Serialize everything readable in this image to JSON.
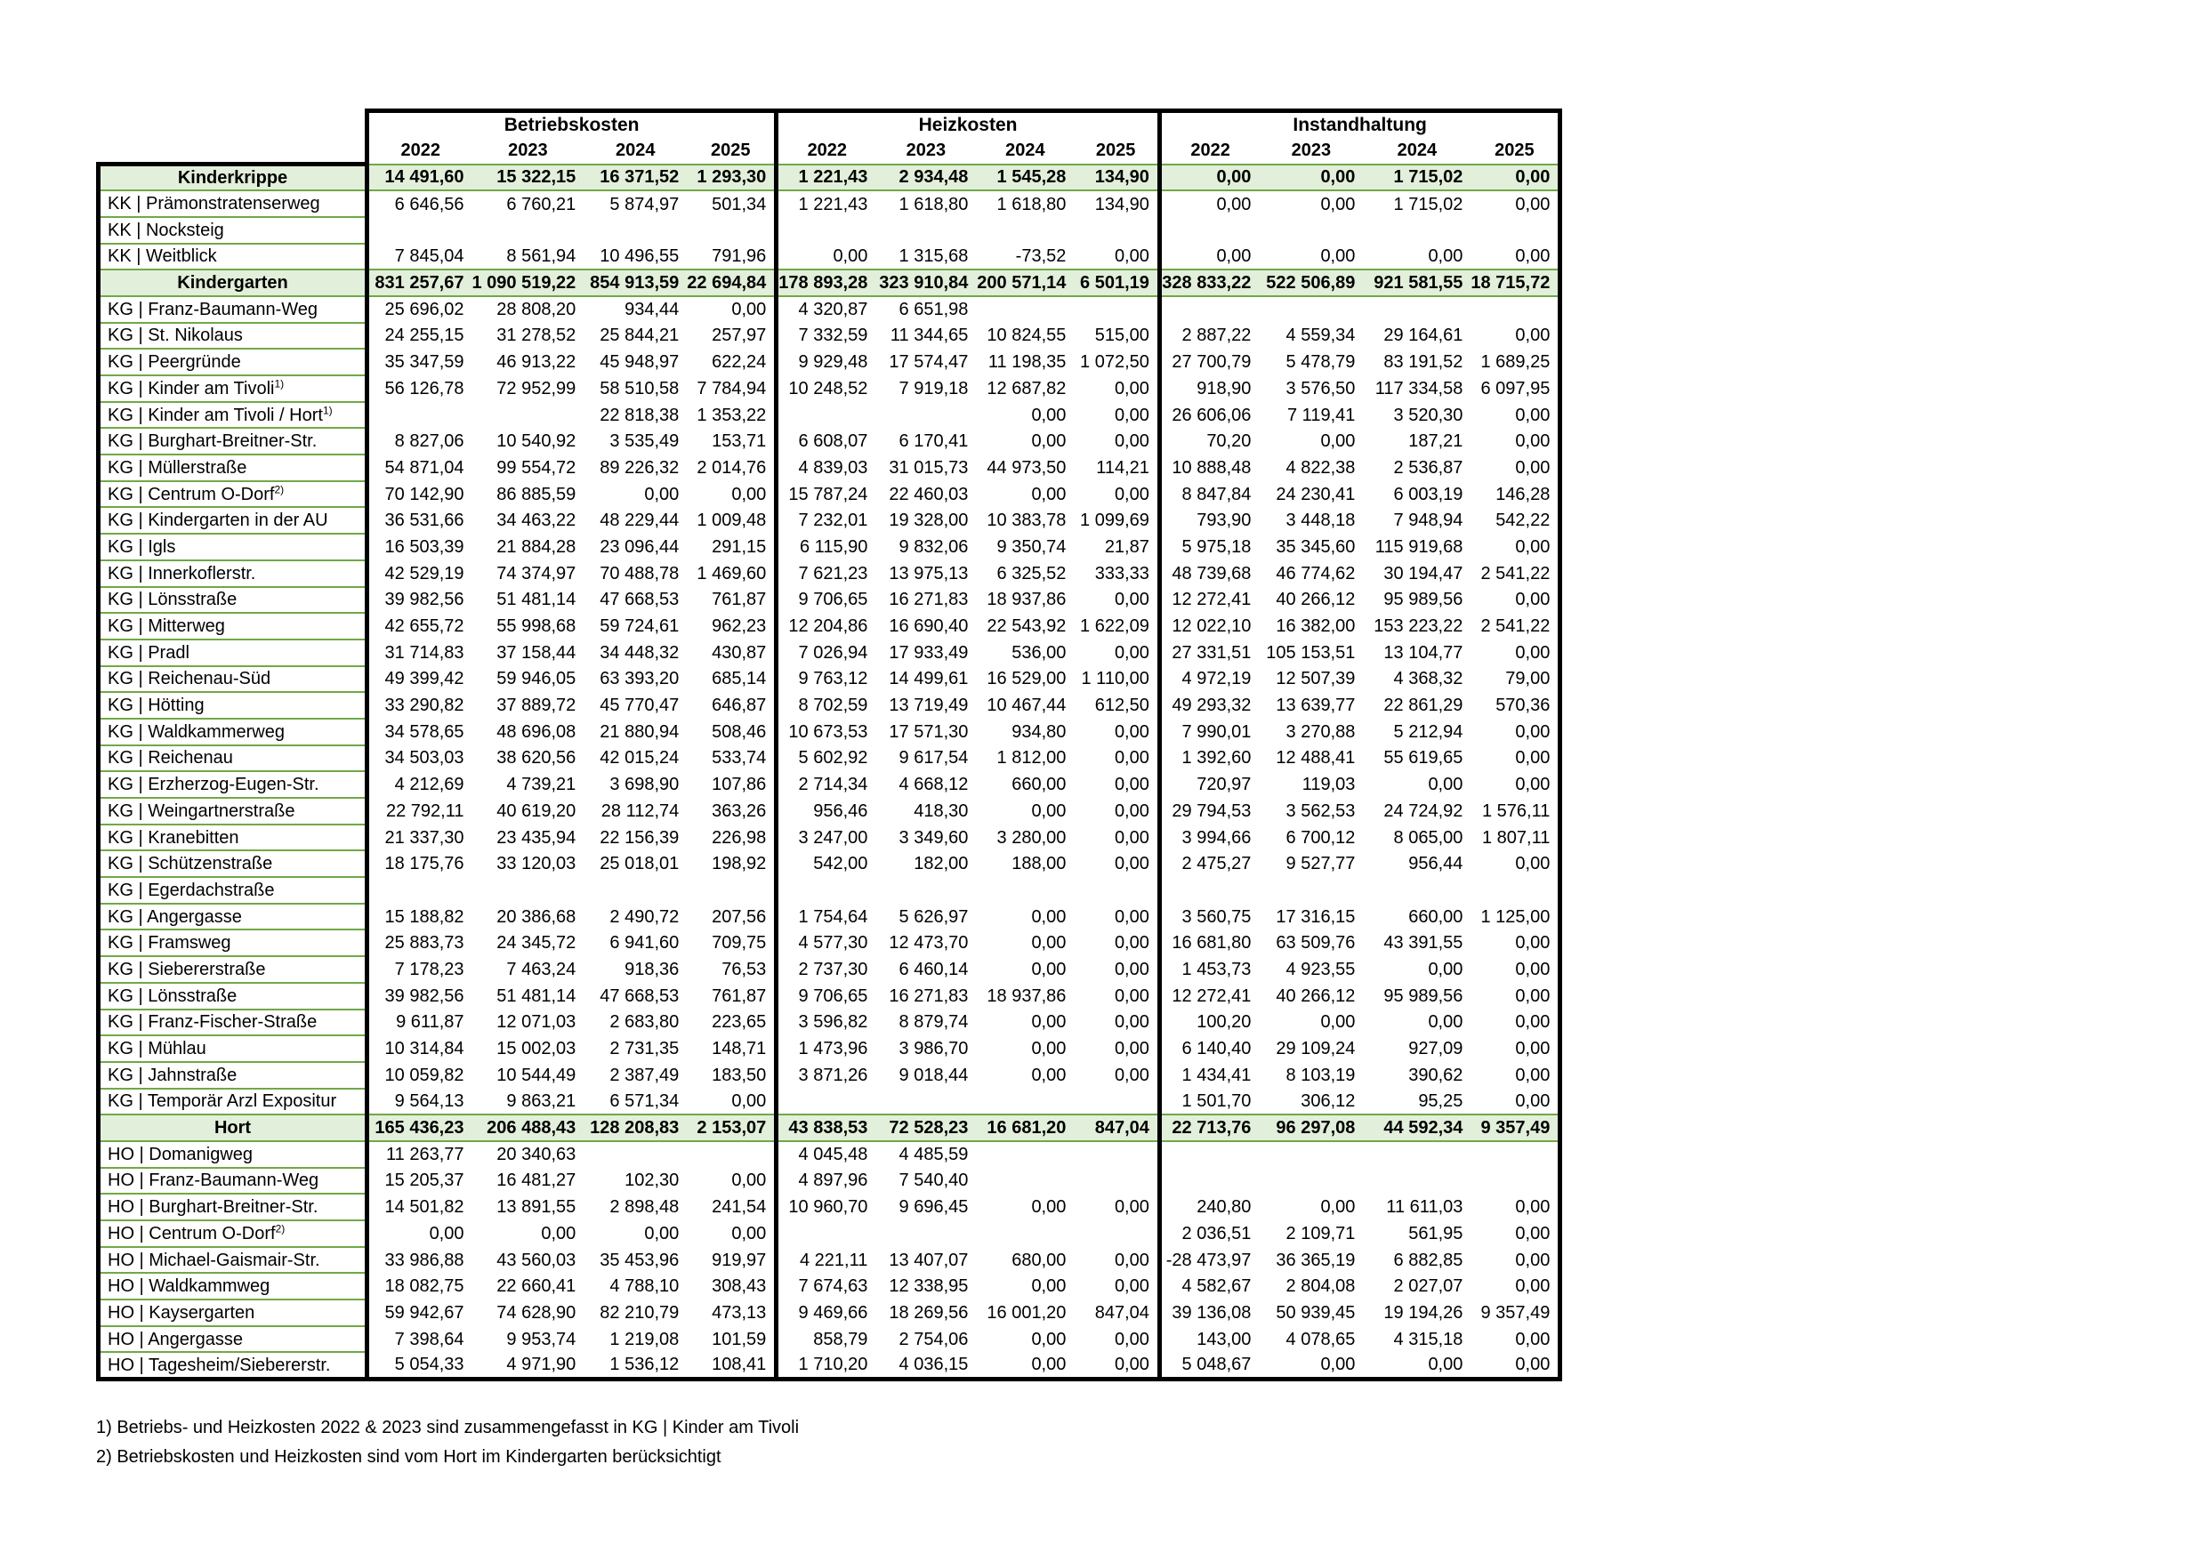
{
  "table": {
    "groups": [
      "Betriebskosten",
      "Heizkosten",
      "Instandhaltung"
    ],
    "years": [
      "2022",
      "2023",
      "2024",
      "2025"
    ],
    "rows": [
      {
        "label": "Kinderkrippe",
        "type": "section",
        "bk": [
          "14 491,60",
          "15 322,15",
          "16 371,52",
          "1 293,30"
        ],
        "hk": [
          "1 221,43",
          "2 934,48",
          "1 545,28",
          "134,90"
        ],
        "ih": [
          "0,00",
          "0,00",
          "1 715,02",
          "0,00"
        ]
      },
      {
        "label": "KK | Prämonstratenserweg",
        "type": "item",
        "bk": [
          "6 646,56",
          "6 760,21",
          "5 874,97",
          "501,34"
        ],
        "hk": [
          "1 221,43",
          "1 618,80",
          "1 618,80",
          "134,90"
        ],
        "ih": [
          "0,00",
          "0,00",
          "1 715,02",
          "0,00"
        ]
      },
      {
        "label": "KK | Nocksteig",
        "type": "item",
        "bk": [
          "",
          "",
          "",
          ""
        ],
        "hk": [
          "",
          "",
          "",
          ""
        ],
        "ih": [
          "",
          "",
          "",
          ""
        ]
      },
      {
        "label": "KK | Weitblick",
        "type": "item",
        "bk": [
          "7 845,04",
          "8 561,94",
          "10 496,55",
          "791,96"
        ],
        "hk": [
          "0,00",
          "1 315,68",
          "-73,52",
          "0,00"
        ],
        "ih": [
          "0,00",
          "0,00",
          "0,00",
          "0,00"
        ]
      },
      {
        "label": "Kindergarten",
        "type": "section",
        "bk": [
          "831 257,67",
          "1 090 519,22",
          "854 913,59",
          "22 694,84"
        ],
        "hk": [
          "178 893,28",
          "323 910,84",
          "200 571,14",
          "6 501,19"
        ],
        "ih": [
          "328 833,22",
          "522 506,89",
          "921 581,55",
          "18 715,72"
        ]
      },
      {
        "label": "KG | Franz-Baumann-Weg",
        "type": "item",
        "bk": [
          "25 696,02",
          "28 808,20",
          "934,44",
          "0,00"
        ],
        "hk": [
          "4 320,87",
          "6 651,98",
          "",
          ""
        ],
        "ih": [
          "",
          "",
          "",
          ""
        ]
      },
      {
        "label": "KG | St. Nikolaus",
        "type": "item",
        "bk": [
          "24 255,15",
          "31 278,52",
          "25 844,21",
          "257,97"
        ],
        "hk": [
          "7 332,59",
          "11 344,65",
          "10 824,55",
          "515,00"
        ],
        "ih": [
          "2 887,22",
          "4 559,34",
          "29 164,61",
          "0,00"
        ]
      },
      {
        "label": "KG | Peergründe",
        "type": "item",
        "bk": [
          "35 347,59",
          "46 913,22",
          "45 948,97",
          "622,24"
        ],
        "hk": [
          "9 929,48",
          "17 574,47",
          "11 198,35",
          "1 072,50"
        ],
        "ih": [
          "27 700,79",
          "5 478,79",
          "83 191,52",
          "1 689,25"
        ]
      },
      {
        "label": "KG | Kinder am Tivoli",
        "sup": "1)",
        "type": "item",
        "bk": [
          "56 126,78",
          "72 952,99",
          "58 510,58",
          "7 784,94"
        ],
        "hk": [
          "10 248,52",
          "7 919,18",
          "12 687,82",
          "0,00"
        ],
        "ih": [
          "918,90",
          "3 576,50",
          "117 334,58",
          "6 097,95"
        ]
      },
      {
        "label": "KG | Kinder am Tivoli / Hort",
        "sup": "1)",
        "type": "item",
        "bk": [
          "",
          "",
          "22 818,38",
          "1 353,22"
        ],
        "hk": [
          "",
          "",
          "0,00",
          "0,00"
        ],
        "ih": [
          "26 606,06",
          "7 119,41",
          "3 520,30",
          "0,00"
        ]
      },
      {
        "label": "KG | Burghart-Breitner-Str.",
        "type": "item",
        "bk": [
          "8 827,06",
          "10 540,92",
          "3 535,49",
          "153,71"
        ],
        "hk": [
          "6 608,07",
          "6 170,41",
          "0,00",
          "0,00"
        ],
        "ih": [
          "70,20",
          "0,00",
          "187,21",
          "0,00"
        ]
      },
      {
        "label": "KG | Müllerstraße",
        "type": "item",
        "bk": [
          "54 871,04",
          "99 554,72",
          "89 226,32",
          "2 014,76"
        ],
        "hk": [
          "4 839,03",
          "31 015,73",
          "44 973,50",
          "114,21"
        ],
        "ih": [
          "10 888,48",
          "4 822,38",
          "2 536,87",
          "0,00"
        ]
      },
      {
        "label": "KG | Centrum O-Dorf",
        "sup": "2)",
        "type": "item",
        "bk": [
          "70 142,90",
          "86 885,59",
          "0,00",
          "0,00"
        ],
        "hk": [
          "15 787,24",
          "22 460,03",
          "0,00",
          "0,00"
        ],
        "ih": [
          "8 847,84",
          "24 230,41",
          "6 003,19",
          "146,28"
        ]
      },
      {
        "label": "KG | Kindergarten in der AU",
        "type": "item",
        "bk": [
          "36 531,66",
          "34 463,22",
          "48 229,44",
          "1 009,48"
        ],
        "hk": [
          "7 232,01",
          "19 328,00",
          "10 383,78",
          "1 099,69"
        ],
        "ih": [
          "793,90",
          "3 448,18",
          "7 948,94",
          "542,22"
        ]
      },
      {
        "label": "KG | Igls",
        "type": "item",
        "bk": [
          "16 503,39",
          "21 884,28",
          "23 096,44",
          "291,15"
        ],
        "hk": [
          "6 115,90",
          "9 832,06",
          "9 350,74",
          "21,87"
        ],
        "ih": [
          "5 975,18",
          "35 345,60",
          "115 919,68",
          "0,00"
        ]
      },
      {
        "label": "KG | Innerkoflerstr.",
        "type": "item",
        "bk": [
          "42 529,19",
          "74 374,97",
          "70 488,78",
          "1 469,60"
        ],
        "hk": [
          "7 621,23",
          "13 975,13",
          "6 325,52",
          "333,33"
        ],
        "ih": [
          "48 739,68",
          "46 774,62",
          "30 194,47",
          "2 541,22"
        ]
      },
      {
        "label": "KG | Lönsstraße",
        "type": "item",
        "bk": [
          "39 982,56",
          "51 481,14",
          "47 668,53",
          "761,87"
        ],
        "hk": [
          "9 706,65",
          "16 271,83",
          "18 937,86",
          "0,00"
        ],
        "ih": [
          "12 272,41",
          "40 266,12",
          "95 989,56",
          "0,00"
        ]
      },
      {
        "label": "KG | Mitterweg",
        "type": "item",
        "bk": [
          "42 655,72",
          "55 998,68",
          "59 724,61",
          "962,23"
        ],
        "hk": [
          "12 204,86",
          "16 690,40",
          "22 543,92",
          "1 622,09"
        ],
        "ih": [
          "12 022,10",
          "16 382,00",
          "153 223,22",
          "2 541,22"
        ]
      },
      {
        "label": "KG | Pradl",
        "type": "item",
        "bk": [
          "31 714,83",
          "37 158,44",
          "34 448,32",
          "430,87"
        ],
        "hk": [
          "7 026,94",
          "17 933,49",
          "536,00",
          "0,00"
        ],
        "ih": [
          "27 331,51",
          "105 153,51",
          "13 104,77",
          "0,00"
        ]
      },
      {
        "label": "KG | Reichenau-Süd",
        "type": "item",
        "bk": [
          "49 399,42",
          "59 946,05",
          "63 393,20",
          "685,14"
        ],
        "hk": [
          "9 763,12",
          "14 499,61",
          "16 529,00",
          "1 110,00"
        ],
        "ih": [
          "4 972,19",
          "12 507,39",
          "4 368,32",
          "79,00"
        ]
      },
      {
        "label": "KG | Hötting",
        "type": "item",
        "bk": [
          "33 290,82",
          "37 889,72",
          "45 770,47",
          "646,87"
        ],
        "hk": [
          "8 702,59",
          "13 719,49",
          "10 467,44",
          "612,50"
        ],
        "ih": [
          "49 293,32",
          "13 639,77",
          "22 861,29",
          "570,36"
        ]
      },
      {
        "label": "KG | Waldkammerweg",
        "type": "item",
        "bk": [
          "34 578,65",
          "48 696,08",
          "21 880,94",
          "508,46"
        ],
        "hk": [
          "10 673,53",
          "17 571,30",
          "934,80",
          "0,00"
        ],
        "ih": [
          "7 990,01",
          "3 270,88",
          "5 212,94",
          "0,00"
        ]
      },
      {
        "label": "KG | Reichenau",
        "type": "item",
        "bk": [
          "34 503,03",
          "38 620,56",
          "42 015,24",
          "533,74"
        ],
        "hk": [
          "5 602,92",
          "9 617,54",
          "1 812,00",
          "0,00"
        ],
        "ih": [
          "1 392,60",
          "12 488,41",
          "55 619,65",
          "0,00"
        ]
      },
      {
        "label": "KG | Erzherzog-Eugen-Str.",
        "type": "item",
        "bk": [
          "4 212,69",
          "4 739,21",
          "3 698,90",
          "107,86"
        ],
        "hk": [
          "2 714,34",
          "4 668,12",
          "660,00",
          "0,00"
        ],
        "ih": [
          "720,97",
          "119,03",
          "0,00",
          "0,00"
        ]
      },
      {
        "label": "KG | Weingartnerstraße",
        "type": "item",
        "bk": [
          "22 792,11",
          "40 619,20",
          "28 112,74",
          "363,26"
        ],
        "hk": [
          "956,46",
          "418,30",
          "0,00",
          "0,00"
        ],
        "ih": [
          "29 794,53",
          "3 562,53",
          "24 724,92",
          "1 576,11"
        ]
      },
      {
        "label": "KG | Kranebitten",
        "type": "item",
        "bk": [
          "21 337,30",
          "23 435,94",
          "22 156,39",
          "226,98"
        ],
        "hk": [
          "3 247,00",
          "3 349,60",
          "3 280,00",
          "0,00"
        ],
        "ih": [
          "3 994,66",
          "6 700,12",
          "8 065,00",
          "1 807,11"
        ]
      },
      {
        "label": "KG | Schützenstraße",
        "type": "item",
        "bk": [
          "18 175,76",
          "33 120,03",
          "25 018,01",
          "198,92"
        ],
        "hk": [
          "542,00",
          "182,00",
          "188,00",
          "0,00"
        ],
        "ih": [
          "2 475,27",
          "9 527,77",
          "956,44",
          "0,00"
        ]
      },
      {
        "label": "KG | Egerdachstraße",
        "type": "item",
        "bk": [
          "",
          "",
          "",
          ""
        ],
        "hk": [
          "",
          "",
          "",
          ""
        ],
        "ih": [
          "",
          "",
          "",
          ""
        ]
      },
      {
        "label": "KG | Angergasse",
        "type": "item",
        "bk": [
          "15 188,82",
          "20 386,68",
          "2 490,72",
          "207,56"
        ],
        "hk": [
          "1 754,64",
          "5 626,97",
          "0,00",
          "0,00"
        ],
        "ih": [
          "3 560,75",
          "17 316,15",
          "660,00",
          "1 125,00"
        ]
      },
      {
        "label": "KG | Framsweg",
        "type": "item",
        "bk": [
          "25 883,73",
          "24 345,72",
          "6 941,60",
          "709,75"
        ],
        "hk": [
          "4 577,30",
          "12 473,70",
          "0,00",
          "0,00"
        ],
        "ih": [
          "16 681,80",
          "63 509,76",
          "43 391,55",
          "0,00"
        ]
      },
      {
        "label": "KG | Siebererstraße",
        "type": "item",
        "bk": [
          "7 178,23",
          "7 463,24",
          "918,36",
          "76,53"
        ],
        "hk": [
          "2 737,30",
          "6 460,14",
          "0,00",
          "0,00"
        ],
        "ih": [
          "1 453,73",
          "4 923,55",
          "0,00",
          "0,00"
        ]
      },
      {
        "label": "KG | Lönsstraße",
        "type": "item",
        "bk": [
          "39 982,56",
          "51 481,14",
          "47 668,53",
          "761,87"
        ],
        "hk": [
          "9 706,65",
          "16 271,83",
          "18 937,86",
          "0,00"
        ],
        "ih": [
          "12 272,41",
          "40 266,12",
          "95 989,56",
          "0,00"
        ]
      },
      {
        "label": "KG | Franz-Fischer-Straße",
        "type": "item",
        "bk": [
          "9 611,87",
          "12 071,03",
          "2 683,80",
          "223,65"
        ],
        "hk": [
          "3 596,82",
          "8 879,74",
          "0,00",
          "0,00"
        ],
        "ih": [
          "100,20",
          "0,00",
          "0,00",
          "0,00"
        ]
      },
      {
        "label": "KG | Mühlau",
        "type": "item",
        "bk": [
          "10 314,84",
          "15 002,03",
          "2 731,35",
          "148,71"
        ],
        "hk": [
          "1 473,96",
          "3 986,70",
          "0,00",
          "0,00"
        ],
        "ih": [
          "6 140,40",
          "29 109,24",
          "927,09",
          "0,00"
        ]
      },
      {
        "label": "KG | Jahnstraße",
        "type": "item",
        "bk": [
          "10 059,82",
          "10 544,49",
          "2 387,49",
          "183,50"
        ],
        "hk": [
          "3 871,26",
          "9 018,44",
          "0,00",
          "0,00"
        ],
        "ih": [
          "1 434,41",
          "8 103,19",
          "390,62",
          "0,00"
        ]
      },
      {
        "label": "KG | Temporär Arzl Expositur",
        "type": "item",
        "bk": [
          "9 564,13",
          "9 863,21",
          "6 571,34",
          "0,00"
        ],
        "hk": [
          "",
          "",
          "",
          ""
        ],
        "ih": [
          "1 501,70",
          "306,12",
          "95,25",
          "0,00"
        ]
      },
      {
        "label": "Hort",
        "type": "section",
        "bk": [
          "165 436,23",
          "206 488,43",
          "128 208,83",
          "2 153,07"
        ],
        "hk": [
          "43 838,53",
          "72 528,23",
          "16 681,20",
          "847,04"
        ],
        "ih": [
          "22 713,76",
          "96 297,08",
          "44 592,34",
          "9 357,49"
        ]
      },
      {
        "label": "HO | Domanigweg",
        "type": "item",
        "bk": [
          "11 263,77",
          "20 340,63",
          "",
          ""
        ],
        "hk": [
          "4 045,48",
          "4 485,59",
          "",
          ""
        ],
        "ih": [
          "",
          "",
          "",
          ""
        ]
      },
      {
        "label": "HO | Franz-Baumann-Weg",
        "type": "item",
        "bk": [
          "15 205,37",
          "16 481,27",
          "102,30",
          "0,00"
        ],
        "hk": [
          "4 897,96",
          "7 540,40",
          "",
          ""
        ],
        "ih": [
          "",
          "",
          "",
          ""
        ]
      },
      {
        "label": "HO | Burghart-Breitner-Str.",
        "type": "item",
        "bk": [
          "14 501,82",
          "13 891,55",
          "2 898,48",
          "241,54"
        ],
        "hk": [
          "10 960,70",
          "9 696,45",
          "0,00",
          "0,00"
        ],
        "ih": [
          "240,80",
          "0,00",
          "11 611,03",
          "0,00"
        ]
      },
      {
        "label": "HO | Centrum O-Dorf",
        "sup": "2)",
        "type": "item",
        "bk": [
          "0,00",
          "0,00",
          "0,00",
          "0,00"
        ],
        "hk": [
          "",
          "",
          "",
          ""
        ],
        "ih": [
          "2 036,51",
          "2 109,71",
          "561,95",
          "0,00"
        ]
      },
      {
        "label": "HO | Michael-Gaismair-Str.",
        "type": "item",
        "bk": [
          "33 986,88",
          "43 560,03",
          "35 453,96",
          "919,97"
        ],
        "hk": [
          "4 221,11",
          "13 407,07",
          "680,00",
          "0,00"
        ],
        "ih": [
          "-28 473,97",
          "36 365,19",
          "6 882,85",
          "0,00"
        ]
      },
      {
        "label": "HO | Waldkammweg",
        "type": "item",
        "bk": [
          "18 082,75",
          "22 660,41",
          "4 788,10",
          "308,43"
        ],
        "hk": [
          "7 674,63",
          "12 338,95",
          "0,00",
          "0,00"
        ],
        "ih": [
          "4 582,67",
          "2 804,08",
          "2 027,07",
          "0,00"
        ]
      },
      {
        "label": "HO | Kaysergarten",
        "type": "item",
        "bk": [
          "59 942,67",
          "74 628,90",
          "82 210,79",
          "473,13"
        ],
        "hk": [
          "9 469,66",
          "18 269,56",
          "16 001,20",
          "847,04"
        ],
        "ih": [
          "39 136,08",
          "50 939,45",
          "19 194,26",
          "9 357,49"
        ]
      },
      {
        "label": "HO | Angergasse",
        "type": "item",
        "bk": [
          "7 398,64",
          "9 953,74",
          "1 219,08",
          "101,59"
        ],
        "hk": [
          "858,79",
          "2 754,06",
          "0,00",
          "0,00"
        ],
        "ih": [
          "143,00",
          "4 078,65",
          "4 315,18",
          "0,00"
        ]
      },
      {
        "label": "HO | Tagesheim/Siebererstr.",
        "type": "item",
        "bk": [
          "5 054,33",
          "4 971,90",
          "1 536,12",
          "108,41"
        ],
        "hk": [
          "1 710,20",
          "4 036,15",
          "0,00",
          "0,00"
        ],
        "ih": [
          "5 048,67",
          "0,00",
          "0,00",
          "0,00"
        ]
      }
    ]
  },
  "footnotes": [
    "1) Betriebs- und Heizkosten 2022 & 2023 sind zusammengefasst in KG | Kinder am Tivoli",
    "2) Betriebskosten und Heizkosten sind vom Hort im Kindergarten berücksichtigt"
  ],
  "colors": {
    "section_fill": "#e2efda",
    "row_line_green": "#70a845",
    "box_border": "#000000"
  }
}
